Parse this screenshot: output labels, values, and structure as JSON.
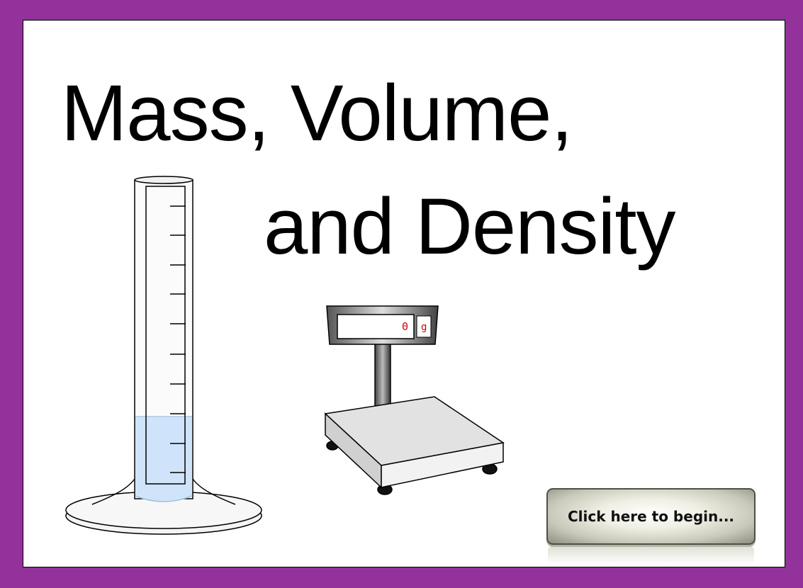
{
  "title": {
    "line1": "Mass, Volume,",
    "line2": "and Density"
  },
  "scale": {
    "reading": "0",
    "unit": "g"
  },
  "begin_button": {
    "label": "Click here to begin..."
  },
  "colors": {
    "border": "#92329a",
    "water": "#cfe4fa",
    "readout_text": "#d40000"
  },
  "icons": [
    "graduated-cylinder-icon",
    "digital-scale-icon"
  ]
}
